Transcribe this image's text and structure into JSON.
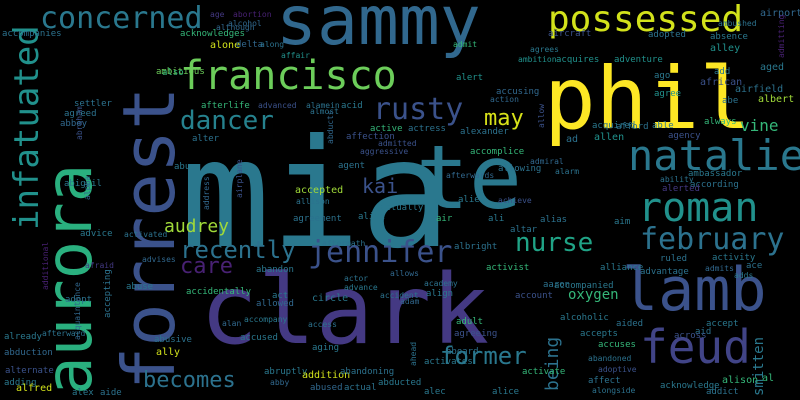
{
  "words": [
    {
      "t": "mia",
      "c": "#2a788e"
    },
    {
      "t": "clark",
      "c": "#443983"
    },
    {
      "t": "forrest",
      "c": "#3b528b"
    },
    {
      "t": "phil",
      "c": "#fde725"
    },
    {
      "t": "sammy",
      "c": "#31688e"
    },
    {
      "t": "aurora",
      "c": "#2ab07f"
    },
    {
      "t": "te",
      "c": "#2a788e"
    },
    {
      "t": "lamb",
      "c": "#3b528b"
    },
    {
      "t": "feud",
      "c": "#414487"
    },
    {
      "t": "francisco",
      "c": "#6ccd5a"
    },
    {
      "t": "possessed",
      "c": "#d2e21b"
    },
    {
      "t": "natalie",
      "c": "#2a788e"
    },
    {
      "t": "roman",
      "c": "#21918c"
    },
    {
      "t": "infatuated",
      "c": "#21918c"
    },
    {
      "t": "concerned",
      "c": "#2a788e"
    },
    {
      "t": "jennifer",
      "c": "#3b528b"
    },
    {
      "t": "february",
      "c": "#2c728e"
    },
    {
      "t": "dancer",
      "c": "#26828e"
    },
    {
      "t": "rusty",
      "c": "#3b528b"
    },
    {
      "t": "nurse",
      "c": "#20a386"
    },
    {
      "t": "recently",
      "c": "#2c728e"
    },
    {
      "t": "former",
      "c": "#2a788e"
    },
    {
      "t": "care",
      "c": "#482173"
    },
    {
      "t": "becomes",
      "c": "#2c728e"
    },
    {
      "t": "may",
      "c": "#d8e219"
    },
    {
      "t": "audrey",
      "c": "#a0da39"
    },
    {
      "t": "kai",
      "c": "#3b528b"
    },
    {
      "t": "being",
      "c": "#2c728e"
    },
    {
      "t": "vine",
      "c": "#35b779"
    },
    {
      "t": "smitten",
      "c": "#2a788e"
    },
    {
      "t": "oxygen",
      "c": "#35b779"
    },
    {
      "t": "age",
      "c": "#443983"
    },
    {
      "t": "abortion",
      "c": "#482173"
    },
    {
      "t": "alcohol",
      "c": "#31688e"
    },
    {
      "t": "airport",
      "c": "#31688e"
    },
    {
      "t": "accompanies",
      "c": "#2c728e"
    },
    {
      "t": "acknowledges",
      "c": "#35b779"
    },
    {
      "t": "aircraft",
      "c": "#3b528b"
    },
    {
      "t": "adopted",
      "c": "#2c728e"
    },
    {
      "t": "absence",
      "c": "#2a788e"
    },
    {
      "t": "admitting",
      "c": "#482173"
    },
    {
      "t": "alone",
      "c": "#d2e21b"
    },
    {
      "t": "delta",
      "c": "#31688e"
    },
    {
      "t": "along",
      "c": "#2c728e"
    },
    {
      "t": "admit",
      "c": "#35b779"
    },
    {
      "t": "agrees",
      "c": "#2a788e"
    },
    {
      "t": "acquires",
      "c": "#21918c"
    },
    {
      "t": "alley",
      "c": "#21918c"
    },
    {
      "t": "ambitious",
      "c": "#6ccd5a"
    },
    {
      "t": "affair",
      "c": "#21918c"
    },
    {
      "t": "ambition",
      "c": "#21918c"
    },
    {
      "t": "adventure",
      "c": "#21918c"
    },
    {
      "t": "aged",
      "c": "#2a788e"
    },
    {
      "t": "also",
      "c": "#35b779"
    },
    {
      "t": "alert",
      "c": "#21918c"
    },
    {
      "t": "ago",
      "c": "#2a788e"
    },
    {
      "t": "add",
      "c": "#2a788e"
    },
    {
      "t": "african",
      "c": "#3b528b"
    },
    {
      "t": "airfield",
      "c": "#2c728e"
    },
    {
      "t": "accusing",
      "c": "#31688e"
    },
    {
      "t": "agree",
      "c": "#21918c"
    },
    {
      "t": "abe",
      "c": "#2c728e"
    },
    {
      "t": "albert",
      "c": "#a0da39"
    },
    {
      "t": "settler",
      "c": "#2c728e"
    },
    {
      "t": "abraham",
      "c": "#3b528b"
    },
    {
      "t": "afterlife",
      "c": "#35b779"
    },
    {
      "t": "advanced",
      "c": "#3b528b"
    },
    {
      "t": "alamein",
      "c": "#2c728e"
    },
    {
      "t": "almost",
      "c": "#2c728e"
    },
    {
      "t": "acid",
      "c": "#2a788e"
    },
    {
      "t": "action",
      "c": "#31688e"
    },
    {
      "t": "allow",
      "c": "#3b528b"
    },
    {
      "t": "agreed",
      "c": "#2c728e"
    },
    {
      "t": "abbey",
      "c": "#31688e"
    },
    {
      "t": "ambassador",
      "c": "#2a788e"
    },
    {
      "t": "alter",
      "c": "#2c728e"
    },
    {
      "t": "active",
      "c": "#35b779"
    },
    {
      "t": "actress",
      "c": "#2c728e"
    },
    {
      "t": "affection",
      "c": "#3b528b"
    },
    {
      "t": "abducts",
      "c": "#31688e"
    },
    {
      "t": "admitted",
      "c": "#3b528b"
    },
    {
      "t": "alexander",
      "c": "#2c728e"
    },
    {
      "t": "acquired",
      "c": "#2a788e"
    },
    {
      "t": "afford",
      "c": "#2c728e"
    },
    {
      "t": "able",
      "c": "#2a788e"
    },
    {
      "t": "agency",
      "c": "#3b528b"
    },
    {
      "t": "always",
      "c": "#35b779"
    },
    {
      "t": "allen",
      "c": "#21918c"
    },
    {
      "t": "abu",
      "c": "#2a788e"
    },
    {
      "t": "aggressive",
      "c": "#3b528b"
    },
    {
      "t": "agent",
      "c": "#2c728e"
    },
    {
      "t": "accomplice",
      "c": "#35b779"
    },
    {
      "t": "admiral",
      "c": "#31688e"
    },
    {
      "t": "ad",
      "c": "#2c728e"
    },
    {
      "t": "alpha",
      "c": "#31688e"
    },
    {
      "t": "airplane",
      "c": "#3b528b"
    },
    {
      "t": "afterwards",
      "c": "#31688e"
    },
    {
      "t": "allowing",
      "c": "#2c728e"
    },
    {
      "t": "alarm",
      "c": "#2c728e"
    },
    {
      "t": "ability",
      "c": "#2c728e"
    },
    {
      "t": "according",
      "c": "#2c728e"
    },
    {
      "t": "abigail",
      "c": "#2a788e"
    },
    {
      "t": "accepted",
      "c": "#a0da39"
    },
    {
      "t": "allison",
      "c": "#2c728e"
    },
    {
      "t": "actually",
      "c": "#2a788e"
    },
    {
      "t": "alien",
      "c": "#2a788e"
    },
    {
      "t": "achieve",
      "c": "#3b528b"
    },
    {
      "t": "alerted",
      "c": "#443983"
    },
    {
      "t": "address",
      "c": "#31688e"
    },
    {
      "t": "agreement",
      "c": "#2c728e"
    },
    {
      "t": "alive",
      "c": "#2a788e"
    },
    {
      "t": "air",
      "c": "#35b779"
    },
    {
      "t": "ali",
      "c": "#2a788e"
    },
    {
      "t": "altar",
      "c": "#2c728e"
    },
    {
      "t": "alias",
      "c": "#2c728e"
    },
    {
      "t": "aim",
      "c": "#2a788e"
    },
    {
      "t": "advice",
      "c": "#2a788e"
    },
    {
      "t": "additional",
      "c": "#482173"
    },
    {
      "t": "activated",
      "c": "#2c728e"
    },
    {
      "t": "aftermath",
      "c": "#2c728e"
    },
    {
      "t": "albright",
      "c": "#2c728e"
    },
    {
      "t": "activist",
      "c": "#35b779"
    },
    {
      "t": "alliance",
      "c": "#2a788e"
    },
    {
      "t": "activity",
      "c": "#2a788e"
    },
    {
      "t": "ruled",
      "c": "#2c728e"
    },
    {
      "t": "ace",
      "c": "#2c728e"
    },
    {
      "t": "afraid",
      "c": "#443983"
    },
    {
      "t": "advises",
      "c": "#31688e"
    },
    {
      "t": "abandon",
      "c": "#2a788e"
    },
    {
      "t": "allows",
      "c": "#31688e"
    },
    {
      "t": "actor",
      "c": "#2c728e"
    },
    {
      "t": "advantage",
      "c": "#2c728e"
    },
    {
      "t": "admits",
      "c": "#31688e"
    },
    {
      "t": "adds",
      "c": "#2a788e"
    },
    {
      "t": "acquaintance",
      "c": "#31688e"
    },
    {
      "t": "accepting",
      "c": "#2c728e"
    },
    {
      "t": "abuse",
      "c": "#2a788e"
    },
    {
      "t": "advance",
      "c": "#2a788e"
    },
    {
      "t": "academy",
      "c": "#2c728e"
    },
    {
      "t": "aaron",
      "c": "#2c728e"
    },
    {
      "t": "accompanied",
      "c": "#2a788e"
    },
    {
      "t": "adopt",
      "c": "#2c728e"
    },
    {
      "t": "accidentally",
      "c": "#35b779"
    },
    {
      "t": "act",
      "c": "#2a788e"
    },
    {
      "t": "allowed",
      "c": "#31688e"
    },
    {
      "t": "circle",
      "c": "#2a788e"
    },
    {
      "t": "adam",
      "c": "#31688e"
    },
    {
      "t": "accident",
      "c": "#2c728e"
    },
    {
      "t": "align",
      "c": "#2a788e"
    },
    {
      "t": "account",
      "c": "#3b528b"
    },
    {
      "t": "aided",
      "c": "#2c728e"
    },
    {
      "t": "aid",
      "c": "#2c728e"
    },
    {
      "t": "accept",
      "c": "#2a788e"
    },
    {
      "t": "already",
      "c": "#2a788e"
    },
    {
      "t": "alan",
      "c": "#31688e"
    },
    {
      "t": "accompany",
      "c": "#2a788e"
    },
    {
      "t": "access",
      "c": "#2c728e"
    },
    {
      "t": "adult",
      "c": "#35b779"
    },
    {
      "t": "agreeing",
      "c": "#3b528b"
    },
    {
      "t": "alcoholic",
      "c": "#2a788e"
    },
    {
      "t": "accepts",
      "c": "#2a788e"
    },
    {
      "t": "accuses",
      "c": "#35b779"
    },
    {
      "t": "across",
      "c": "#3b528b"
    },
    {
      "t": "afterward",
      "c": "#2c728e"
    },
    {
      "t": "accused",
      "c": "#2a788e"
    },
    {
      "t": "abusive",
      "c": "#2c728e"
    },
    {
      "t": "ally",
      "c": "#d2e21b"
    },
    {
      "t": "aging",
      "c": "#2a788e"
    },
    {
      "t": "aboard",
      "c": "#2c728e"
    },
    {
      "t": "ahead",
      "c": "#2c728e"
    },
    {
      "t": "abandoned",
      "c": "#2c728e"
    },
    {
      "t": "adoptive",
      "c": "#3b528b"
    },
    {
      "t": "abduction",
      "c": "#31688e"
    },
    {
      "t": "alternate",
      "c": "#3b528b"
    },
    {
      "t": "adding",
      "c": "#2a788e"
    },
    {
      "t": "alfred",
      "c": "#d2e21b"
    },
    {
      "t": "abruptly",
      "c": "#2a788e"
    },
    {
      "t": "addition",
      "c": "#d2e21b"
    },
    {
      "t": "abandoning",
      "c": "#2c728e"
    },
    {
      "t": "activates",
      "c": "#2a788e"
    },
    {
      "t": "activate",
      "c": "#35b779"
    },
    {
      "t": "affect",
      "c": "#2c728e"
    },
    {
      "t": "acknowledge",
      "c": "#2a788e"
    },
    {
      "t": "alison",
      "c": "#35b779"
    },
    {
      "t": "al",
      "c": "#35b779"
    },
    {
      "t": "alex",
      "c": "#2a788e"
    },
    {
      "t": "aide",
      "c": "#2c728e"
    },
    {
      "t": "abby",
      "c": "#31688e"
    },
    {
      "t": "abused",
      "c": "#31688e"
    },
    {
      "t": "abducted",
      "c": "#2a788e"
    },
    {
      "t": "actual",
      "c": "#2c728e"
    },
    {
      "t": "alec",
      "c": "#2a788e"
    },
    {
      "t": "alice",
      "c": "#2a788e"
    },
    {
      "t": "alongside",
      "c": "#2c728e"
    },
    {
      "t": "addict",
      "c": "#2c728e"
    },
    {
      "t": "although",
      "c": "#31688e"
    },
    {
      "t": "ambushed",
      "c": "#2c728e"
    }
  ]
}
